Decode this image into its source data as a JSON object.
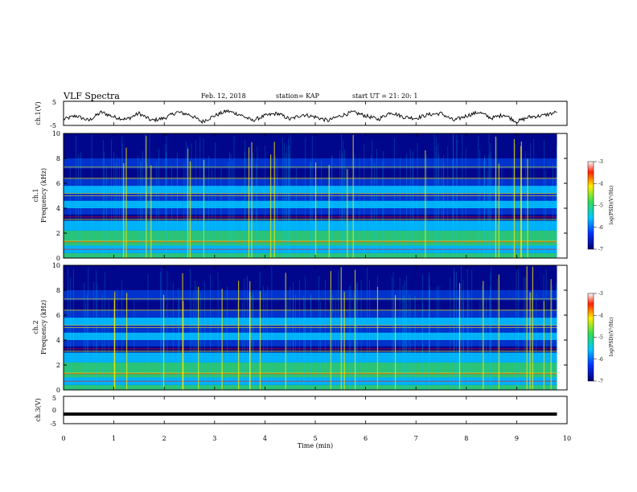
{
  "header": {
    "title": "VLF Spectra",
    "date": "Feb. 12, 2018",
    "station": "station= KAP",
    "start_ut": "start UT = 21: 20: 1"
  },
  "chart_data": [
    {
      "type": "line",
      "panel": "ch1-waveform",
      "ylabel": "ch.1(V)",
      "ylim": [
        -5,
        5
      ],
      "yticks": [
        "5",
        "-5"
      ],
      "x_range_min": [
        0,
        9.8
      ],
      "description_of_trace": "oscillating signal roughly between -4 and 1.5 V",
      "series": [
        {
          "x": [
            0,
            0.25,
            0.5,
            0.75,
            1,
            1.25,
            1.5,
            1.75,
            2,
            2.25,
            2.5,
            2.75,
            3,
            3.25,
            3.5,
            3.75,
            4,
            4.25,
            4.5,
            4.75,
            5,
            5.25,
            5.5,
            5.75,
            6,
            6.25,
            6.5,
            6.75,
            7,
            7.25,
            7.5,
            7.75,
            8,
            8.25,
            8.5,
            8.75,
            9,
            9.25,
            9.5,
            9.8
          ],
          "y": [
            -2.5,
            -1.0,
            -3.0,
            0.5,
            -1.5,
            -2.5,
            0.0,
            -3.0,
            -2.0,
            0.5,
            -0.5,
            -3.5,
            -1.0,
            1.0,
            -0.5,
            -3.0,
            -1.0,
            0.0,
            -2.5,
            -0.5,
            -1.5,
            -3.0,
            -1.0,
            0.5,
            -1.0,
            -2.5,
            0.5,
            -1.5,
            -2.0,
            -0.5,
            0.0,
            -3.0,
            -1.0,
            0.5,
            -2.0,
            -0.5,
            -3.5,
            -1.5,
            -1.0,
            0.5
          ]
        }
      ]
    },
    {
      "type": "heatmap",
      "panel": "ch1-spectrogram",
      "ylabel": "ch.1\nFrequency (kHz)",
      "ylim": [
        0,
        10
      ],
      "yticks": [
        "0",
        "2",
        "4",
        "6",
        "8",
        "10"
      ],
      "xlim": [
        0,
        10
      ],
      "colorbar": {
        "label": "log(PSD)(V²/Hz)",
        "range": [
          -7,
          -3
        ],
        "ticks": [
          "-3",
          "-4",
          "-5",
          "-6",
          "-7"
        ]
      }
    },
    {
      "type": "heatmap",
      "panel": "ch2-spectrogram",
      "ylabel": "ch.2\nFrequency (kHz)",
      "ylim": [
        0,
        10
      ],
      "yticks": [
        "0",
        "2",
        "4",
        "6",
        "8",
        "10"
      ],
      "xlim": [
        0,
        10
      ],
      "colorbar": {
        "label": "log(PSD)(V²/Hz)",
        "range": [
          -7,
          -3
        ],
        "ticks": [
          "-3",
          "-4",
          "-5",
          "-6",
          "-7"
        ]
      }
    },
    {
      "type": "line",
      "panel": "ch3-waveform",
      "ylabel": "ch.3(V)",
      "ylim": [
        -5,
        5
      ],
      "yticks": [
        "5",
        "0",
        "-5"
      ],
      "series": [
        {
          "x": [
            0,
            9.8
          ],
          "y": [
            -1.5,
            -1.5
          ]
        }
      ]
    }
  ],
  "xaxis": {
    "label": "Time (min)",
    "ticks": [
      "0",
      "1",
      "2",
      "3",
      "4",
      "5",
      "6",
      "7",
      "8",
      "9",
      "10"
    ],
    "xlim": [
      0,
      10
    ]
  },
  "colors": {
    "bg_dark": "#000080",
    "bg_blue": "#0033cc",
    "cyan": "#00c8ff",
    "green": "#33dd66",
    "yellow": "#ffee00",
    "red": "#ff0000"
  }
}
